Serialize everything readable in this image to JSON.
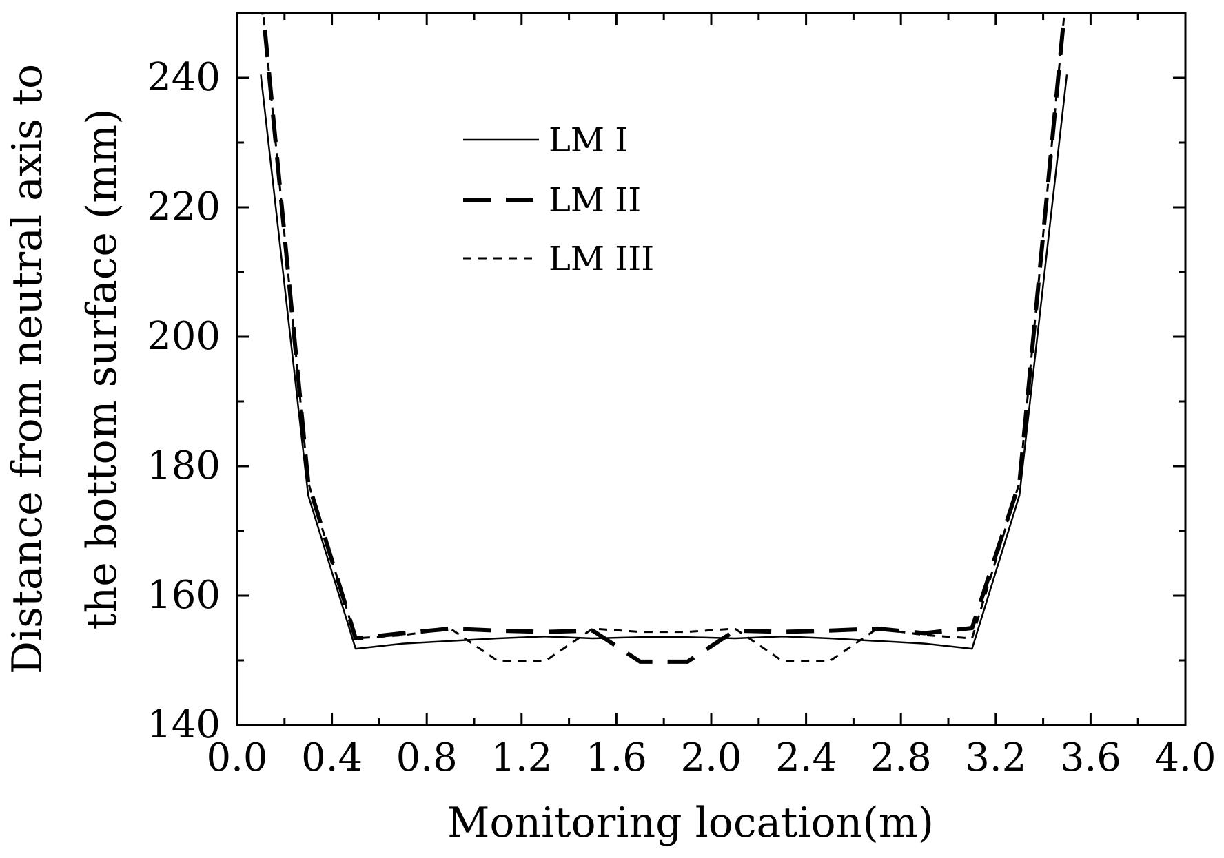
{
  "chart_data": {
    "type": "line",
    "title": "",
    "xlabel": "Monitoring location(m)",
    "ylabel_lines": [
      "Distance from neutral axis to",
      "the bottom surface (mm)"
    ],
    "xlim": [
      0.0,
      4.0
    ],
    "ylim": [
      140,
      250
    ],
    "xticks": [
      0.0,
      0.4,
      0.8,
      1.2,
      1.6,
      2.0,
      2.4,
      2.8,
      3.2,
      3.6,
      4.0
    ],
    "xtick_labels": [
      "0.0",
      "0.4",
      "0.8",
      "1.2",
      "1.6",
      "2.0",
      "2.4",
      "2.8",
      "3.2",
      "3.6",
      "4.0"
    ],
    "yticks": [
      140,
      160,
      180,
      200,
      220,
      240
    ],
    "ytick_labels": [
      "140",
      "160",
      "180",
      "200",
      "220",
      "240"
    ],
    "grid": false,
    "legend_position": "top-center",
    "series": [
      {
        "name": "LM I",
        "style": "solid",
        "x": [
          0.1,
          0.3,
          0.5,
          0.7,
          0.9,
          1.1,
          1.3,
          1.5,
          1.7,
          1.9,
          2.1,
          2.3,
          2.5,
          2.7,
          2.9,
          3.1,
          3.3,
          3.5
        ],
        "y": [
          240.5,
          175.5,
          151.8,
          152.6,
          153.0,
          153.4,
          153.7,
          153.4,
          153.6,
          153.6,
          153.4,
          153.7,
          153.4,
          153.0,
          152.6,
          151.8,
          175.5,
          240.5
        ]
      },
      {
        "name": "LM II",
        "style": "dashed",
        "x": [
          0.1,
          0.3,
          0.5,
          0.7,
          0.9,
          1.1,
          1.3,
          1.5,
          1.7,
          1.9,
          2.1,
          2.3,
          2.5,
          2.7,
          2.9,
          3.1,
          3.3,
          3.5
        ],
        "y": [
          254.0,
          177.5,
          153.4,
          154.2,
          154.9,
          154.6,
          154.4,
          154.6,
          149.8,
          149.8,
          154.6,
          154.4,
          154.6,
          154.9,
          154.2,
          155.0,
          177.5,
          254.0
        ]
      },
      {
        "name": "LM III",
        "style": "dotted",
        "x": [
          0.1,
          0.3,
          0.5,
          0.7,
          0.9,
          1.1,
          1.3,
          1.5,
          1.7,
          1.9,
          2.1,
          2.3,
          2.5,
          2.7,
          2.9,
          3.1,
          3.3,
          3.5
        ],
        "y": [
          254.0,
          177.5,
          153.4,
          153.9,
          154.9,
          149.9,
          149.9,
          154.9,
          154.4,
          154.4,
          154.9,
          149.9,
          149.9,
          154.9,
          153.9,
          153.4,
          177.5,
          254.0
        ]
      }
    ],
    "legend": [
      {
        "label": "LM I",
        "style": "solid"
      },
      {
        "label": "LM II",
        "style": "dashed"
      },
      {
        "label": "LM III",
        "style": "dotted"
      }
    ]
  }
}
